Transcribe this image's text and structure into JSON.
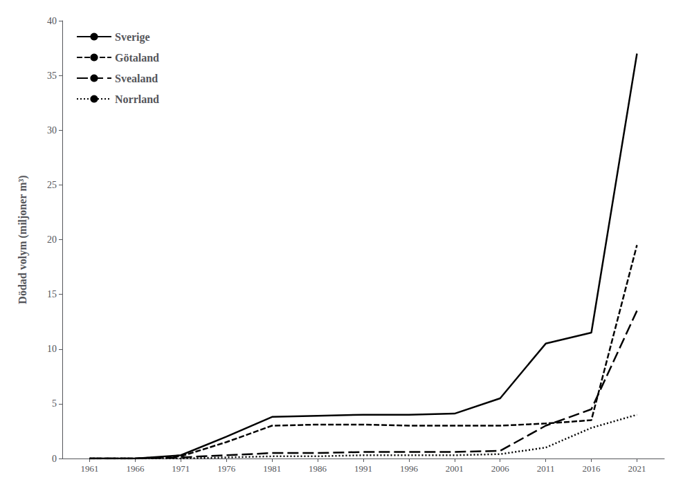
{
  "chart_data": {
    "type": "line",
    "ylabel": "Dödad volym (miljoner m³)",
    "x": [
      1961,
      1966,
      1971,
      1976,
      1981,
      1986,
      1991,
      1996,
      2001,
      2006,
      2011,
      2016,
      2021
    ],
    "xlim": [
      1958,
      2024
    ],
    "xticks": [
      1961,
      1966,
      1971,
      1976,
      1981,
      1986,
      1991,
      1996,
      2001,
      2006,
      2011,
      2016,
      2021
    ],
    "ylim": [
      0,
      40
    ],
    "yticks": [
      0,
      5,
      10,
      15,
      20,
      25,
      30,
      35,
      40
    ],
    "grid": false,
    "legend": "upper left",
    "series": [
      {
        "name": "Sverige",
        "color": "#000000",
        "line_style": "solid",
        "values": [
          0.0,
          0.0,
          0.3,
          2.0,
          3.8,
          3.9,
          4.0,
          4.0,
          4.1,
          5.5,
          10.5,
          11.5,
          37.0
        ]
      },
      {
        "name": "Götaland",
        "color": "#000000",
        "line_style": "dashed",
        "values": [
          0.0,
          0.0,
          0.2,
          1.5,
          3.0,
          3.1,
          3.1,
          3.0,
          3.0,
          3.0,
          3.2,
          3.5,
          19.5
        ]
      },
      {
        "name": "Svealand",
        "color": "#000000",
        "line_style": "longdash",
        "values": [
          0.0,
          0.0,
          0.1,
          0.3,
          0.5,
          0.5,
          0.6,
          0.6,
          0.6,
          0.7,
          3.0,
          4.5,
          13.5
        ]
      },
      {
        "name": "Norrland",
        "color": "#000000",
        "line_style": "dotted",
        "values": [
          0.0,
          0.0,
          0.0,
          0.1,
          0.2,
          0.2,
          0.3,
          0.3,
          0.3,
          0.4,
          1.0,
          2.8,
          4.0
        ]
      }
    ]
  }
}
